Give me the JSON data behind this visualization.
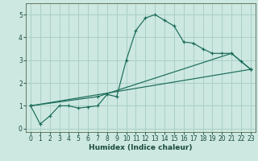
{
  "title": "",
  "xlabel": "Humidex (Indice chaleur)",
  "bg_color": "#cce8e0",
  "line_color": "#1a6b5a",
  "grid_color": "#aacfc8",
  "xlim": [
    -0.5,
    23.5
  ],
  "ylim": [
    -0.15,
    5.5
  ],
  "xticks": [
    0,
    1,
    2,
    3,
    4,
    5,
    6,
    7,
    8,
    9,
    10,
    11,
    12,
    13,
    14,
    15,
    16,
    17,
    18,
    19,
    20,
    21,
    22,
    23
  ],
  "yticks": [
    0,
    1,
    2,
    3,
    4,
    5
  ],
  "line1_x": [
    0,
    1,
    2,
    3,
    4,
    5,
    6,
    7,
    8,
    9,
    10,
    11,
    12,
    13,
    14,
    15,
    16,
    17,
    18,
    19,
    20,
    21,
    22,
    23
  ],
  "line1_y": [
    1.0,
    0.2,
    0.55,
    1.0,
    1.0,
    0.9,
    0.95,
    1.0,
    1.5,
    1.4,
    3.0,
    4.3,
    4.85,
    5.0,
    4.75,
    4.5,
    3.8,
    3.75,
    3.5,
    3.3,
    3.3,
    3.3,
    2.95,
    2.6
  ],
  "line2_x": [
    0,
    23
  ],
  "line2_y": [
    1.0,
    2.6
  ],
  "line3_x": [
    0,
    7,
    21,
    23
  ],
  "line3_y": [
    1.0,
    1.4,
    3.3,
    2.6
  ],
  "tick_fontsize": 5.5,
  "xlabel_fontsize": 6.5
}
